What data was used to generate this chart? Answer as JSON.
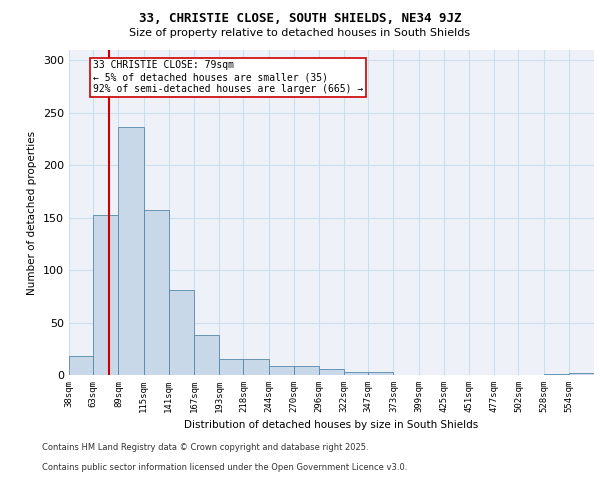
{
  "title1": "33, CHRISTIE CLOSE, SOUTH SHIELDS, NE34 9JZ",
  "title2": "Size of property relative to detached houses in South Shields",
  "xlabel": "Distribution of detached houses by size in South Shields",
  "ylabel": "Number of detached properties",
  "bin_labels": [
    "38sqm",
    "63sqm",
    "89sqm",
    "115sqm",
    "141sqm",
    "167sqm",
    "193sqm",
    "218sqm",
    "244sqm",
    "270sqm",
    "296sqm",
    "322sqm",
    "347sqm",
    "373sqm",
    "399sqm",
    "425sqm",
    "451sqm",
    "477sqm",
    "502sqm",
    "528sqm",
    "554sqm"
  ],
  "bar_heights": [
    18,
    153,
    237,
    157,
    81,
    38,
    15,
    15,
    9,
    9,
    6,
    3,
    3,
    0,
    0,
    0,
    0,
    0,
    0,
    1,
    2
  ],
  "bar_color": "#c8d8e8",
  "bar_edge_color": "#5588aa",
  "grid_color": "#ccddee",
  "bg_color": "#eef2f8",
  "vline_x": 79,
  "vline_color": "#cc0000",
  "annotation_text": "33 CHRISTIE CLOSE: 79sqm\n← 5% of detached houses are smaller (35)\n92% of semi-detached houses are larger (665) →",
  "annotation_box_color": "#ffffff",
  "annotation_box_edge": "#cc0000",
  "ylim": [
    0,
    310
  ],
  "yticks": [
    0,
    50,
    100,
    150,
    200,
    250,
    300
  ],
  "footer1": "Contains HM Land Registry data © Crown copyright and database right 2025.",
  "footer2": "Contains public sector information licensed under the Open Government Licence v3.0.",
  "bin_edges": [
    38,
    63,
    89,
    115,
    141,
    167,
    193,
    218,
    244,
    270,
    296,
    322,
    347,
    373,
    399,
    425,
    451,
    477,
    502,
    528,
    554,
    580
  ]
}
